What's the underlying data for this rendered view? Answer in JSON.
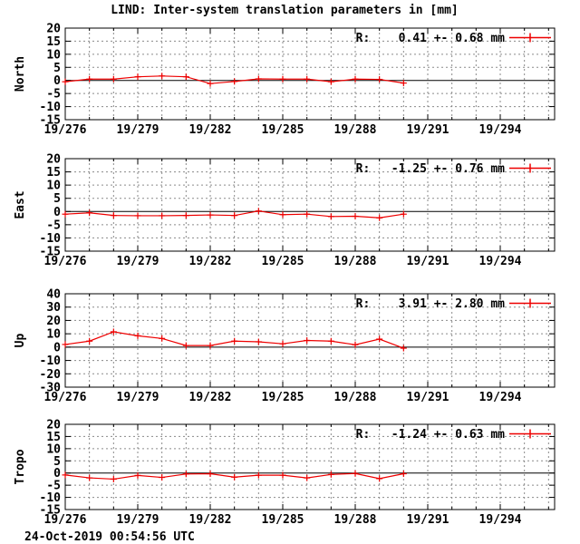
{
  "title": "LIND: Inter-system translation parameters in [mm]",
  "footer_timestamp": "24-Oct-2019 00:54:56 UTC",
  "colors": {
    "line": "#ee0000",
    "grid": "#8a8a8a",
    "axis": "#000000",
    "text": "#000000",
    "background": "#ffffff"
  },
  "x_axis": {
    "range": [
      276,
      296.25
    ],
    "minor_tick_step_days": 1,
    "major_tick_days": [
      276,
      279,
      282,
      285,
      288,
      291,
      294
    ],
    "major_tick_labels": [
      "19/276",
      "19/279",
      "19/282",
      "19/285",
      "19/288",
      "19/291",
      "19/294"
    ]
  },
  "chart_data": [
    {
      "type": "line",
      "name": "North",
      "ylabel": "North",
      "legend": "R:    0.41 +- 0.68 mm",
      "ylim": [
        -15,
        20
      ],
      "yticks": [
        -15,
        -10,
        -5,
        0,
        5,
        10,
        15,
        20
      ],
      "x": [
        276,
        277,
        278,
        279,
        280,
        281,
        282,
        283,
        284,
        285,
        286,
        287,
        288,
        289,
        290
      ],
      "values": [
        -0.5,
        0.5,
        0.5,
        1.4,
        1.7,
        1.4,
        -1.2,
        -0.4,
        0.6,
        0.5,
        0.5,
        -0.5,
        0.5,
        0.4,
        -1.0
      ]
    },
    {
      "type": "line",
      "name": "East",
      "ylabel": "East",
      "legend": "R:   -1.25 +- 0.76 mm",
      "ylim": [
        -15,
        20
      ],
      "yticks": [
        -15,
        -10,
        -5,
        0,
        5,
        10,
        15,
        20
      ],
      "x": [
        276,
        277,
        278,
        279,
        280,
        281,
        282,
        283,
        284,
        285,
        286,
        287,
        288,
        289,
        290
      ],
      "values": [
        -1.0,
        -0.5,
        -1.5,
        -1.6,
        -1.6,
        -1.5,
        -1.3,
        -1.5,
        0.2,
        -1.2,
        -1.0,
        -1.9,
        -1.8,
        -2.4,
        -1.0
      ]
    },
    {
      "type": "line",
      "name": "Up",
      "ylabel": "Up",
      "legend": "R:    3.91 +- 2.80 mm",
      "ylim": [
        -30,
        40
      ],
      "yticks": [
        -30,
        -20,
        -10,
        0,
        10,
        20,
        30,
        40
      ],
      "x": [
        276,
        277,
        278,
        279,
        280,
        281,
        282,
        283,
        284,
        285,
        286,
        287,
        288,
        289,
        290
      ],
      "values": [
        2.0,
        4.5,
        11.5,
        8.5,
        6.5,
        1.2,
        1.2,
        4.5,
        4.0,
        2.5,
        5.0,
        4.5,
        1.8,
        6.0,
        -0.8
      ]
    },
    {
      "type": "line",
      "name": "Tropo",
      "ylabel": "Tropo",
      "legend": "R:   -1.24 +- 0.63 mm",
      "ylim": [
        -15,
        20
      ],
      "yticks": [
        -15,
        -10,
        -5,
        0,
        5,
        10,
        15,
        20
      ],
      "x": [
        276,
        277,
        278,
        279,
        280,
        281,
        282,
        283,
        284,
        285,
        286,
        287,
        288,
        289,
        290
      ],
      "values": [
        -0.8,
        -2.0,
        -2.5,
        -1.0,
        -1.8,
        -0.4,
        -0.3,
        -1.7,
        -0.9,
        -0.9,
        -2.0,
        -0.6,
        -0.2,
        -2.3,
        -0.3
      ]
    }
  ]
}
